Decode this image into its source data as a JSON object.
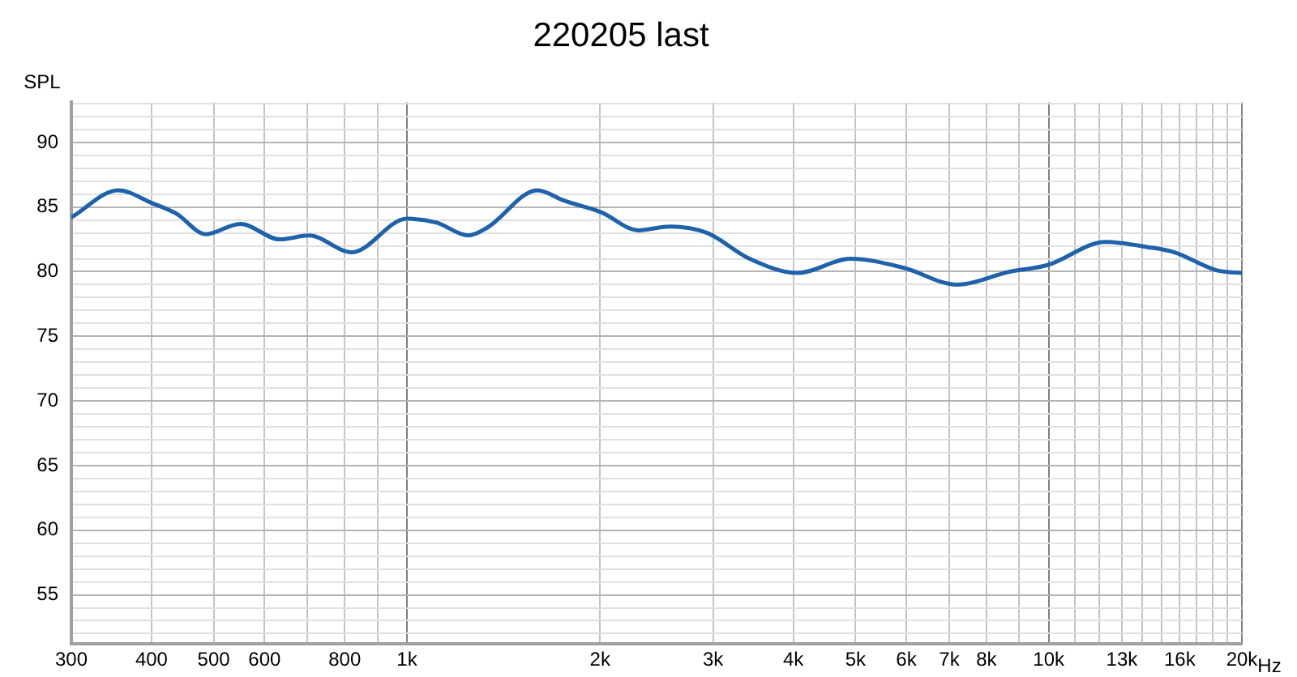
{
  "chart_data": {
    "type": "line",
    "title": "220205 last",
    "ylabel": "SPL",
    "x": [
      300,
      355,
      401,
      437,
      486,
      550,
      634,
      704,
      820,
      1000,
      1112,
      1247,
      1333,
      1598,
      1757,
      2008,
      2294,
      2571,
      2937,
      3420,
      4061,
      4911,
      5946,
      7190,
      8700,
      9942,
      12262,
      14275,
      15704,
      18282,
      20000
    ],
    "series": [
      {
        "color": "#1f62ac",
        "values": [
          84.2,
          86.3,
          85.3,
          84.5,
          82.9,
          83.7,
          82.5,
          82.8,
          81.5,
          84.1,
          83.8,
          82.8,
          83.4,
          86.3,
          85.5,
          84.6,
          83.2,
          83.5,
          83.0,
          81.0,
          79.9,
          81.0,
          80.3,
          79.0,
          80.0,
          80.5,
          82.3,
          81.9,
          81.5,
          80.1,
          79.9
        ]
      }
    ],
    "log": "x",
    "xlim": [
      300,
      20000
    ],
    "xticks": [
      300,
      400,
      500,
      600,
      {
        "value": 700,
        "label": null
      },
      800,
      {
        "value": 900,
        "label": null
      },
      {
        "value": 1000,
        "label": "1k"
      },
      {
        "value": 2000,
        "label": "2k"
      },
      {
        "value": 3000,
        "label": "3k"
      },
      {
        "value": 4000,
        "label": "4k"
      },
      {
        "value": 5000,
        "label": "5k"
      },
      {
        "value": 6000,
        "label": "6k"
      },
      {
        "value": 7000,
        "label": "7k"
      },
      {
        "value": 8000,
        "label": "8k"
      },
      {
        "value": 9000,
        "label": null
      },
      {
        "value": 10000,
        "label": "10k"
      },
      {
        "value": 11000,
        "label": null
      },
      {
        "value": 12000,
        "label": null
      },
      {
        "value": 13000,
        "label": "13k"
      },
      {
        "value": 14000,
        "label": null
      },
      {
        "value": 15000,
        "label": null
      },
      {
        "value": 16000,
        "label": "16k"
      },
      {
        "value": 17000,
        "label": null
      },
      {
        "value": 18000,
        "label": null
      },
      {
        "value": 19000,
        "label": null
      },
      {
        "value": 20000,
        "label": "20k"
      }
    ],
    "xlabel": "Hz",
    "ylim": [
      51.2,
      93.1
    ],
    "yticks": [
      {
        "value": 52,
        "label": null
      },
      {
        "value": 53,
        "label": null
      },
      {
        "value": 54,
        "label": null
      },
      55,
      {
        "value": 56,
        "label": null
      },
      {
        "value": 57,
        "label": null
      },
      {
        "value": 58,
        "label": null
      },
      {
        "value": 59,
        "label": null
      },
      60,
      {
        "value": 61,
        "label": null
      },
      {
        "value": 62,
        "label": null
      },
      {
        "value": 63,
        "label": null
      },
      {
        "value": 64,
        "label": null
      },
      65,
      {
        "value": 66,
        "label": null
      },
      {
        "value": 67,
        "label": null
      },
      {
        "value": 68,
        "label": null
      },
      {
        "value": 69,
        "label": null
      },
      70,
      {
        "value": 71,
        "label": null
      },
      {
        "value": 72,
        "label": null
      },
      {
        "value": 73,
        "label": null
      },
      {
        "value": 74,
        "label": null
      },
      75,
      {
        "value": 76,
        "label": null
      },
      {
        "value": 77,
        "label": null
      },
      {
        "value": 78,
        "label": null
      },
      {
        "value": 79,
        "label": null
      },
      80,
      {
        "value": 81,
        "label": null
      },
      {
        "value": 82,
        "label": null
      },
      {
        "value": 83,
        "label": null
      },
      {
        "value": 84,
        "label": null
      },
      85,
      {
        "value": 86,
        "label": null
      },
      {
        "value": 87,
        "label": null
      },
      {
        "value": 88,
        "label": null
      },
      {
        "value": 89,
        "label": null
      },
      90,
      {
        "value": 91,
        "label": null
      },
      {
        "value": 92,
        "label": null
      },
      {
        "value": 93,
        "label": null
      }
    ],
    "grid": true,
    "marker": "none",
    "line_style": "solid"
  }
}
